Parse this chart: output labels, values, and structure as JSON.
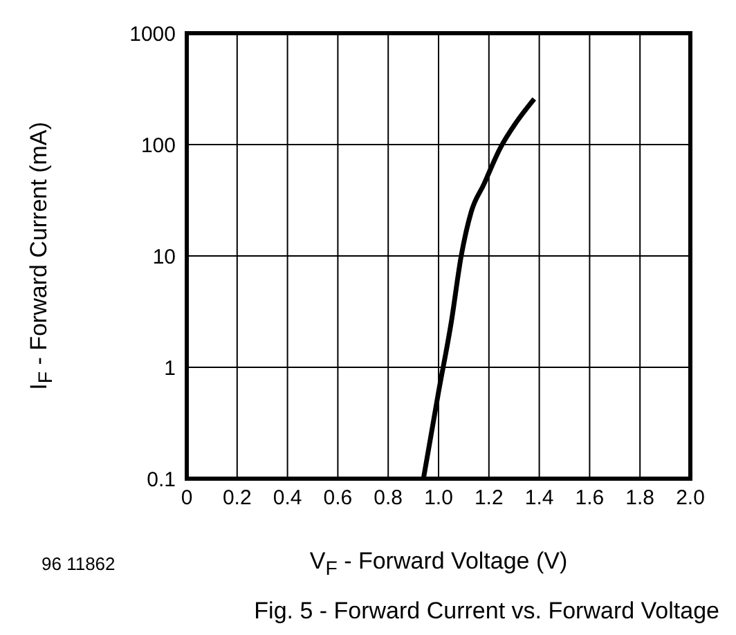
{
  "chart_data": {
    "type": "line",
    "title": "Fig. 5 - Forward Current vs. Forward Voltage",
    "xlabel": "V$_{F}$ - Forward Voltage (V)",
    "ylabel": "I$_{F}$ - Forward Current (mA)",
    "annotations": [
      "96 11862"
    ],
    "series": [
      {
        "color": "#000000",
        "x": [
          0.94,
          1.0,
          1.05,
          1.09,
          1.13,
          1.18,
          1.245,
          1.31,
          1.38
        ],
        "values": [
          0.1,
          0.6,
          2.5,
          10,
          25,
          44,
          93,
          160,
          257
        ]
      }
    ],
    "xlim": [
      0,
      2
    ],
    "xticks": [
      0,
      0.2,
      0.4,
      0.6,
      0.8,
      {
        "value": 1,
        "label": "1.0"
      },
      1.2,
      1.4,
      1.6,
      1.8,
      {
        "value": 2,
        "label": "2.0"
      }
    ],
    "ylim": [
      0.1,
      1000
    ],
    "yticks": [
      0.1,
      1,
      10,
      100,
      1000
    ],
    "log": "y",
    "grid": true,
    "marker": "none",
    "line_style": "solid"
  }
}
